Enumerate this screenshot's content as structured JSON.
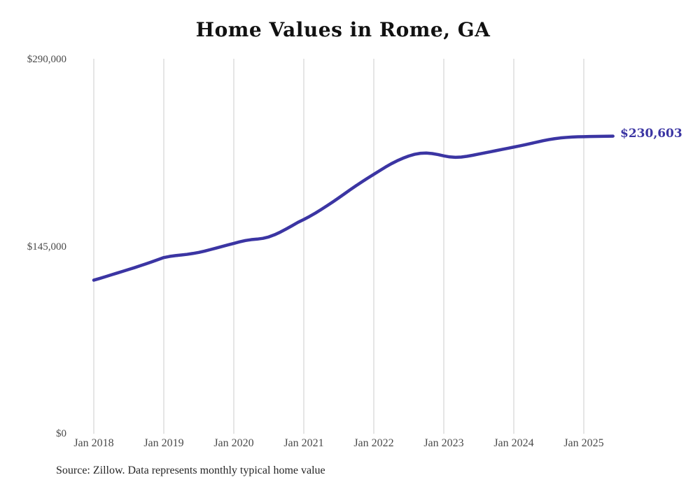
{
  "title": "Home Values in Rome, GA",
  "source_note": "Source: Zillow. Data represents monthly typical home value",
  "colors": {
    "line": "#3b35a3",
    "grid": "#cbcbcb",
    "title_text": "#111111",
    "axis_text": "#4a4a4a",
    "annotation_text": "#3b35a3",
    "background": "#ffffff"
  },
  "chart_data": {
    "type": "line",
    "title": "Home Values in Rome, GA",
    "xlabel": "",
    "ylabel": "",
    "x_tick_labels": [
      "Jan 2018",
      "Jan 2019",
      "Jan 2020",
      "Jan 2021",
      "Jan 2022",
      "Jan 2023",
      "Jan 2024",
      "Jan 2025"
    ],
    "y_tick_labels": [
      "$0",
      "$145,000",
      "$290,000"
    ],
    "y_ticks": [
      0,
      145000,
      290000
    ],
    "ylim": [
      0,
      290000
    ],
    "grid": "vertical-only",
    "legend": "none",
    "x_start": "Jan 2018",
    "x_end": "Jun 2025",
    "x_interval": "month",
    "annotation": "$230,603",
    "final_value": 230603,
    "series": [
      {
        "name": "Monthly typical home value",
        "values": [
          119000,
          120300,
          121700,
          123100,
          124500,
          125900,
          127300,
          128700,
          130200,
          131700,
          133300,
          134900,
          136500,
          137400,
          138000,
          138500,
          139000,
          139700,
          140500,
          141500,
          142700,
          143900,
          145100,
          146300,
          147500,
          148700,
          149700,
          150400,
          150800,
          151400,
          152500,
          154200,
          156300,
          158700,
          161200,
          163800,
          166000,
          168400,
          171000,
          173800,
          176700,
          179700,
          182800,
          186000,
          189200,
          192300,
          195300,
          198200,
          201000,
          203800,
          206600,
          209200,
          211500,
          213500,
          215200,
          216500,
          217300,
          217500,
          217100,
          216300,
          215300,
          214500,
          214200,
          214400,
          215000,
          215800,
          216700,
          217600,
          218500,
          219400,
          220300,
          221200,
          222100,
          223000,
          224000,
          225000,
          226000,
          227000,
          227900,
          228600,
          229200,
          229600,
          229900,
          230100,
          230200,
          230300,
          230400,
          230450,
          230500,
          230603
        ]
      }
    ]
  }
}
